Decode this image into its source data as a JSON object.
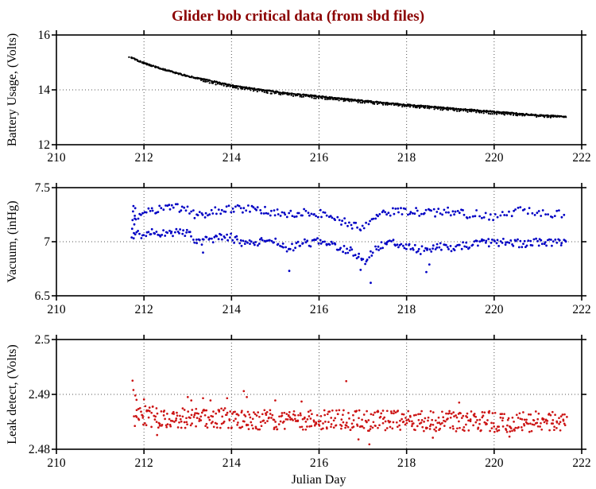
{
  "title": {
    "text": "Glider bob critical data (from sbd files)",
    "color": "#8b0000"
  },
  "xlabel": "Julian Day",
  "background": "#ffffff",
  "axis_color": "#000000",
  "grid_color": "#555555",
  "chart_data": [
    {
      "type": "scatter",
      "name": "battery-usage",
      "ylabel": "Battery Usage, (Volts)",
      "xlim": [
        210,
        222
      ],
      "ylim": [
        12,
        16
      ],
      "xticks": [
        210,
        212,
        214,
        216,
        218,
        220,
        222
      ],
      "xtick_labels": [
        "210",
        "212",
        "214",
        "216",
        "218",
        "220",
        "222"
      ],
      "yticks": [
        12,
        14,
        16
      ],
      "ytick_labels": [
        "12",
        "14",
        "16"
      ],
      "grid_x": [
        212,
        214,
        216,
        218,
        220
      ],
      "grid_y": [
        14
      ],
      "color": "#000000",
      "marker_radius": 1.15,
      "bands": [
        {
          "n": 760,
          "x_range": [
            211.7,
            221.65
          ],
          "jitter": 0.022,
          "anchors": [
            [
              211.7,
              15.18
            ],
            [
              211.9,
              15.04
            ],
            [
              212.1,
              14.92
            ],
            [
              212.4,
              14.77
            ],
            [
              212.7,
              14.63
            ],
            [
              213.0,
              14.5
            ],
            [
              213.3,
              14.4
            ],
            [
              213.6,
              14.3
            ],
            [
              214.0,
              14.16
            ],
            [
              214.4,
              14.06
            ],
            [
              214.8,
              13.97
            ],
            [
              215.2,
              13.89
            ],
            [
              215.6,
              13.82
            ],
            [
              216.0,
              13.76
            ],
            [
              216.4,
              13.69
            ],
            [
              216.8,
              13.63
            ],
            [
              217.2,
              13.57
            ],
            [
              217.6,
              13.51
            ],
            [
              218.0,
              13.45
            ],
            [
              218.4,
              13.4
            ],
            [
              218.8,
              13.35
            ],
            [
              219.2,
              13.3
            ],
            [
              219.6,
              13.25
            ],
            [
              220.0,
              13.2
            ],
            [
              220.4,
              13.15
            ],
            [
              220.8,
              13.1
            ],
            [
              221.2,
              13.06
            ],
            [
              221.65,
              13.01
            ]
          ]
        },
        {
          "n": 170,
          "x_range": [
            213.3,
            221.4
          ],
          "jitter": 0.028,
          "anchors": [
            [
              213.3,
              14.33
            ],
            [
              214.0,
              14.1
            ],
            [
              215.0,
              13.87
            ],
            [
              216.0,
              13.7
            ],
            [
              217.0,
              13.55
            ],
            [
              218.0,
              13.4
            ],
            [
              219.0,
              13.27
            ],
            [
              220.0,
              13.14
            ],
            [
              221.4,
              13.0
            ]
          ]
        }
      ],
      "outliers": [
        [
          211.66,
          15.19
        ]
      ]
    },
    {
      "type": "scatter",
      "name": "vacuum",
      "ylabel": "Vacuum, (inHg)",
      "xlim": [
        210,
        222
      ],
      "ylim": [
        6.5,
        7.5
      ],
      "xticks": [
        210,
        212,
        214,
        216,
        218,
        220,
        222
      ],
      "xtick_labels": [
        "210",
        "212",
        "214",
        "216",
        "218",
        "220",
        "222"
      ],
      "yticks": [
        6.5,
        7,
        7.5
      ],
      "ytick_labels": [
        "6.5",
        "7",
        "7.5"
      ],
      "grid_x": [
        212,
        214,
        216,
        218,
        220
      ],
      "grid_y": [
        7
      ],
      "color": "#0000c4",
      "marker_radius": 1.4,
      "bands": [
        {
          "n": 195,
          "x_range": [
            211.78,
            219.4
          ],
          "jitter": 0.038,
          "anchors": [
            [
              211.78,
              7.2
            ],
            [
              212.0,
              7.27
            ],
            [
              212.3,
              7.3
            ],
            [
              212.7,
              7.32
            ],
            [
              213.0,
              7.29
            ],
            [
              213.2,
              7.24
            ],
            [
              213.5,
              7.27
            ],
            [
              213.8,
              7.3
            ],
            [
              214.1,
              7.3
            ],
            [
              214.4,
              7.31
            ],
            [
              214.7,
              7.29
            ],
            [
              215.0,
              7.27
            ],
            [
              215.3,
              7.25
            ],
            [
              215.6,
              7.27
            ],
            [
              216.0,
              7.26
            ],
            [
              216.3,
              7.22
            ],
            [
              216.6,
              7.18
            ],
            [
              216.9,
              7.13
            ],
            [
              217.2,
              7.2
            ],
            [
              217.5,
              7.27
            ],
            [
              217.8,
              7.29
            ],
            [
              218.2,
              7.28
            ],
            [
              218.6,
              7.27
            ],
            [
              219.0,
              7.28
            ],
            [
              219.4,
              7.25
            ]
          ]
        },
        {
          "n": 42,
          "x_range": [
            219.45,
            221.6
          ],
          "jitter": 0.045,
          "anchors": [
            [
              219.45,
              7.26
            ],
            [
              220.0,
              7.24
            ],
            [
              220.5,
              7.28
            ],
            [
              221.0,
              7.28
            ],
            [
              221.6,
              7.24
            ]
          ]
        },
        {
          "n": 310,
          "x_range": [
            211.78,
            221.65
          ],
          "jitter": 0.038,
          "anchors": [
            [
              211.78,
              7.06
            ],
            [
              212.2,
              7.08
            ],
            [
              212.6,
              7.09
            ],
            [
              213.0,
              7.07
            ],
            [
              213.25,
              6.99
            ],
            [
              213.6,
              7.03
            ],
            [
              214.0,
              7.04
            ],
            [
              214.3,
              6.97
            ],
            [
              214.6,
              7.0
            ],
            [
              215.0,
              7.02
            ],
            [
              215.3,
              6.94
            ],
            [
              215.7,
              6.99
            ],
            [
              216.0,
              7.0
            ],
            [
              216.4,
              6.96
            ],
            [
              216.8,
              6.9
            ],
            [
              217.05,
              6.82
            ],
            [
              217.3,
              6.93
            ],
            [
              217.6,
              7.0
            ],
            [
              218.0,
              6.97
            ],
            [
              218.3,
              6.92
            ],
            [
              218.7,
              6.96
            ],
            [
              219.0,
              6.95
            ],
            [
              219.4,
              6.97
            ],
            [
              219.8,
              6.99
            ],
            [
              220.2,
              7.0
            ],
            [
              220.6,
              6.98
            ],
            [
              221.0,
              7.0
            ],
            [
              221.4,
              6.99
            ],
            [
              221.65,
              6.98
            ]
          ]
        }
      ],
      "outliers": [
        [
          211.72,
          7.04
        ],
        [
          211.73,
          7.12
        ],
        [
          211.74,
          7.2
        ],
        [
          211.75,
          7.28
        ],
        [
          211.76,
          7.33
        ],
        [
          211.77,
          7.08
        ],
        [
          211.78,
          7.16
        ],
        [
          211.79,
          7.24
        ],
        [
          211.8,
          7.31
        ],
        [
          213.35,
          6.9
        ],
        [
          215.32,
          6.73
        ],
        [
          216.95,
          6.74
        ],
        [
          217.18,
          6.62
        ],
        [
          218.45,
          6.72
        ],
        [
          218.52,
          6.79
        ]
      ]
    },
    {
      "type": "scatter",
      "name": "leak-detect",
      "ylabel": "Leak detect, (Volts)",
      "xlim": [
        210,
        222
      ],
      "ylim": [
        2.48,
        2.5
      ],
      "xticks": [
        210,
        212,
        214,
        216,
        218,
        220,
        222
      ],
      "xtick_labels": [
        "210",
        "212",
        "214",
        "216",
        "218",
        "220",
        "222"
      ],
      "yticks": [
        2.48,
        2.49,
        2.5
      ],
      "ytick_labels": [
        "2.48",
        "2.49",
        "2.5"
      ],
      "grid_x": [
        212,
        214,
        216,
        218,
        220
      ],
      "grid_y": [
        2.49
      ],
      "color": "#cc1414",
      "marker_radius": 1.35,
      "bands": [
        {
          "n": 600,
          "x_range": [
            211.78,
            221.65
          ],
          "jitter": 0.0019,
          "anchors": [
            [
              211.78,
              2.4861
            ],
            [
              212.5,
              2.4857
            ],
            [
              213.5,
              2.4858
            ],
            [
              214.5,
              2.4855
            ],
            [
              215.5,
              2.4855
            ],
            [
              216.5,
              2.4853
            ],
            [
              217.5,
              2.4852
            ],
            [
              218.5,
              2.4852
            ],
            [
              219.5,
              2.4851
            ],
            [
              220.5,
              2.485
            ],
            [
              221.65,
              2.485
            ]
          ]
        }
      ],
      "outliers": [
        [
          211.74,
          2.4925
        ],
        [
          211.76,
          2.4908
        ],
        [
          211.8,
          2.4898
        ],
        [
          211.83,
          2.489
        ],
        [
          212.0,
          2.4891
        ],
        [
          212.3,
          2.4826
        ],
        [
          213.0,
          2.4895
        ],
        [
          213.08,
          2.4889
        ],
        [
          213.35,
          2.4893
        ],
        [
          213.52,
          2.4889
        ],
        [
          213.9,
          2.4893
        ],
        [
          214.28,
          2.4906
        ],
        [
          214.35,
          2.4895
        ],
        [
          215.0,
          2.4889
        ],
        [
          215.6,
          2.4887
        ],
        [
          216.62,
          2.4924
        ],
        [
          216.9,
          2.4818
        ],
        [
          217.15,
          2.4809
        ],
        [
          218.6,
          2.4821
        ],
        [
          219.2,
          2.4885
        ],
        [
          220.35,
          2.4823
        ]
      ]
    }
  ]
}
